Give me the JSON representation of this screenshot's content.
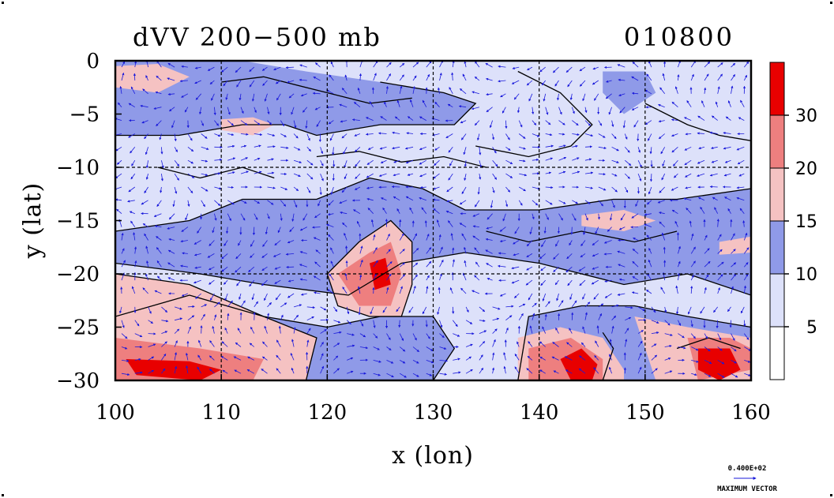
{
  "chart_data": {
    "type": "heatmap",
    "title": "dVV 200−500 mb",
    "date_label": "010800",
    "xlabel": "x (lon)",
    "ylabel": "y (lat)",
    "xlim": [
      100,
      160
    ],
    "ylim": [
      -30,
      0
    ],
    "x_ticks": [
      100,
      110,
      120,
      130,
      140,
      150,
      160
    ],
    "x_tick_labels": [
      "100",
      "110",
      "120",
      "130",
      "140",
      "150",
      "160"
    ],
    "y_ticks": [
      0,
      -5,
      -10,
      -15,
      -20,
      -25,
      -30
    ],
    "y_tick_labels": [
      "0",
      "−5",
      "−10",
      "−15",
      "−20",
      "−25",
      "−30"
    ],
    "grid_lines_x": [
      110,
      120,
      130,
      140,
      150
    ],
    "grid_lines_y": [
      -10,
      -20
    ],
    "colorbar": {
      "levels": [
        0,
        5,
        10,
        15,
        20,
        30,
        40
      ],
      "labels": [
        "5",
        "10",
        "15",
        "20",
        "30"
      ],
      "colors": [
        "#ffffff",
        "#dde1fa",
        "#8f9ae8",
        "#f5c2c2",
        "#ee7f7f",
        "#e80000"
      ]
    },
    "colors": {
      "blue_mid": "#8f9ae8",
      "blue_light": "#dde1fa",
      "pink": "#f5c2c2",
      "red_mid": "#ee7f7f",
      "red_dark": "#e80000",
      "vector": "#1a1adb"
    },
    "regions": [
      {
        "level": 10,
        "pts": [
          [
            100,
            0
          ],
          [
            112,
            0
          ],
          [
            118,
            -1
          ],
          [
            125,
            -2
          ],
          [
            131,
            -3
          ],
          [
            134,
            -4
          ],
          [
            132,
            -6
          ],
          [
            125,
            -6
          ],
          [
            119,
            -7
          ],
          [
            116,
            -6
          ],
          [
            112,
            -6
          ],
          [
            106,
            -7
          ],
          [
            100,
            -7
          ]
        ]
      },
      {
        "level": 10,
        "pts": [
          [
            100,
            -16
          ],
          [
            107,
            -15
          ],
          [
            112,
            -13
          ],
          [
            119,
            -13
          ],
          [
            124,
            -11
          ],
          [
            129,
            -12
          ],
          [
            133,
            -14
          ],
          [
            140,
            -14
          ],
          [
            147,
            -13
          ],
          [
            153,
            -13
          ],
          [
            160,
            -12
          ],
          [
            160,
            -22
          ],
          [
            154,
            -20
          ],
          [
            148,
            -21
          ],
          [
            140,
            -19
          ],
          [
            133,
            -18
          ],
          [
            127,
            -19
          ],
          [
            122,
            -22
          ],
          [
            114,
            -21
          ],
          [
            108,
            -20
          ],
          [
            100,
            -19
          ]
        ]
      },
      {
        "level": 10,
        "pts": [
          [
            100,
            -24
          ],
          [
            107,
            -22
          ],
          [
            114,
            -24
          ],
          [
            120,
            -25
          ],
          [
            125,
            -24
          ],
          [
            130,
            -24
          ],
          [
            132,
            -27
          ],
          [
            130,
            -30
          ],
          [
            100,
            -30
          ]
        ]
      },
      {
        "level": 10,
        "pts": [
          [
            139,
            -24
          ],
          [
            144,
            -23
          ],
          [
            149,
            -23
          ],
          [
            154,
            -24
          ],
          [
            160,
            -25
          ],
          [
            160,
            -30
          ],
          [
            138,
            -30
          ]
        ]
      },
      {
        "level": 10,
        "pts": [
          [
            146,
            -1
          ],
          [
            150,
            -1
          ],
          [
            151,
            -3
          ],
          [
            148,
            -5
          ],
          [
            146,
            -3
          ]
        ]
      },
      {
        "level": 15,
        "pts": [
          [
            100,
            -20
          ],
          [
            107,
            -21
          ],
          [
            114,
            -24
          ],
          [
            119,
            -26
          ],
          [
            118,
            -30
          ],
          [
            100,
            -30
          ]
        ]
      },
      {
        "level": 15,
        "pts": [
          [
            120,
            -20
          ],
          [
            123,
            -17
          ],
          [
            126,
            -15
          ],
          [
            128,
            -17
          ],
          [
            128,
            -21
          ],
          [
            127,
            -24
          ],
          [
            124,
            -24
          ],
          [
            121,
            -23
          ]
        ]
      },
      {
        "level": 15,
        "pts": [
          [
            138,
            -26
          ],
          [
            142,
            -25
          ],
          [
            146,
            -26
          ],
          [
            148,
            -29
          ],
          [
            148,
            -30
          ],
          [
            138,
            -30
          ]
        ]
      },
      {
        "level": 15,
        "pts": [
          [
            149,
            -24
          ],
          [
            154,
            -25
          ],
          [
            160,
            -26
          ],
          [
            160,
            -30
          ],
          [
            151,
            -30
          ]
        ]
      },
      {
        "level": 15,
        "pts": [
          [
            100,
            -0.5
          ],
          [
            104,
            -0.3
          ],
          [
            107,
            -1.5
          ],
          [
            104,
            -3
          ],
          [
            100,
            -2.5
          ]
        ]
      },
      {
        "level": 15,
        "pts": [
          [
            110,
            -5.5
          ],
          [
            113,
            -5.3
          ],
          [
            115,
            -6
          ],
          [
            113,
            -7
          ],
          [
            110,
            -6.5
          ]
        ]
      },
      {
        "level": 15,
        "pts": [
          [
            144,
            -14.5
          ],
          [
            148,
            -14
          ],
          [
            151,
            -15
          ],
          [
            148,
            -16
          ],
          [
            144,
            -15.5
          ]
        ]
      },
      {
        "level": 15,
        "pts": [
          [
            157,
            -17
          ],
          [
            160,
            -16.5
          ],
          [
            160,
            -18
          ],
          [
            157,
            -18.2
          ]
        ]
      },
      {
        "level": 20,
        "pts": [
          [
            121,
            -20
          ],
          [
            124,
            -18
          ],
          [
            126,
            -17
          ],
          [
            127,
            -20
          ],
          [
            126,
            -23
          ],
          [
            123,
            -23
          ]
        ]
      },
      {
        "level": 20,
        "pts": [
          [
            100,
            -26
          ],
          [
            108,
            -27
          ],
          [
            114,
            -28
          ],
          [
            113,
            -30
          ],
          [
            100,
            -30
          ]
        ]
      },
      {
        "level": 20,
        "pts": [
          [
            139,
            -27
          ],
          [
            143,
            -26
          ],
          [
            146,
            -28
          ],
          [
            146,
            -30
          ],
          [
            139,
            -30
          ]
        ]
      },
      {
        "level": 20,
        "pts": [
          [
            154,
            -26
          ],
          [
            158,
            -26
          ],
          [
            160,
            -27
          ],
          [
            160,
            -29
          ],
          [
            155,
            -30
          ]
        ]
      },
      {
        "level": 30,
        "pts": [
          [
            101,
            -28
          ],
          [
            107,
            -28.2
          ],
          [
            110,
            -29
          ],
          [
            108,
            -30
          ],
          [
            102,
            -29.5
          ]
        ]
      },
      {
        "level": 30,
        "pts": [
          [
            142,
            -28
          ],
          [
            144,
            -27
          ],
          [
            145.5,
            -28.5
          ],
          [
            145,
            -30
          ],
          [
            143,
            -30
          ]
        ]
      },
      {
        "level": 30,
        "pts": [
          [
            155,
            -27
          ],
          [
            158,
            -27
          ],
          [
            159,
            -29
          ],
          [
            157,
            -30
          ],
          [
            155,
            -29
          ]
        ]
      },
      {
        "level": 30,
        "pts": [
          [
            124,
            -19
          ],
          [
            125.5,
            -18.5
          ],
          [
            126,
            -21
          ],
          [
            124.5,
            -21.5
          ]
        ]
      }
    ],
    "contours": [
      {
        "pts": [
          [
            100,
            -7
          ],
          [
            106,
            -7
          ],
          [
            112,
            -6
          ],
          [
            116,
            -6
          ],
          [
            119,
            -7
          ],
          [
            125,
            -6
          ],
          [
            132,
            -6
          ],
          [
            134,
            -4
          ],
          [
            131,
            -3
          ],
          [
            125,
            -2
          ]
        ]
      },
      {
        "pts": [
          [
            100,
            -16
          ],
          [
            107,
            -15
          ],
          [
            112,
            -13
          ],
          [
            119,
            -13
          ],
          [
            124,
            -11
          ],
          [
            129,
            -12
          ],
          [
            133,
            -14
          ],
          [
            140,
            -14
          ],
          [
            147,
            -13
          ],
          [
            153,
            -13
          ],
          [
            160,
            -12
          ]
        ]
      },
      {
        "pts": [
          [
            100,
            -19
          ],
          [
            108,
            -20
          ],
          [
            114,
            -21
          ],
          [
            122,
            -22
          ],
          [
            127,
            -19
          ],
          [
            133,
            -18
          ],
          [
            140,
            -19
          ],
          [
            148,
            -21
          ],
          [
            154,
            -20
          ],
          [
            160,
            -22
          ]
        ]
      },
      {
        "pts": [
          [
            100,
            -24
          ],
          [
            107,
            -22
          ],
          [
            114,
            -24
          ],
          [
            120,
            -25
          ],
          [
            125,
            -24
          ],
          [
            130,
            -24
          ],
          [
            132,
            -27
          ],
          [
            130,
            -30
          ]
        ]
      },
      {
        "pts": [
          [
            138,
            -30
          ],
          [
            139,
            -24
          ],
          [
            144,
            -23
          ],
          [
            149,
            -23
          ],
          [
            154,
            -24
          ],
          [
            160,
            -25
          ]
        ]
      },
      {
        "pts": [
          [
            100,
            -20
          ],
          [
            107,
            -21
          ],
          [
            114,
            -24
          ],
          [
            119,
            -26
          ],
          [
            118,
            -30
          ]
        ]
      },
      {
        "pts": [
          [
            124,
            -24
          ],
          [
            121,
            -23
          ],
          [
            120,
            -20
          ],
          [
            123,
            -17
          ],
          [
            126,
            -15
          ],
          [
            128,
            -17
          ],
          [
            128,
            -21
          ],
          [
            127,
            -24
          ],
          [
            124,
            -24
          ]
        ]
      },
      {
        "pts": [
          [
            110,
            -2
          ],
          [
            114,
            -1.5
          ],
          [
            120,
            -3
          ],
          [
            124,
            -4
          ],
          [
            128,
            -3.5
          ]
        ]
      },
      {
        "pts": [
          [
            138,
            -1
          ],
          [
            142,
            -3
          ],
          [
            145,
            -6
          ],
          [
            143,
            -8
          ],
          [
            139,
            -9
          ],
          [
            134,
            -8
          ]
        ]
      },
      {
        "pts": [
          [
            119,
            -9
          ],
          [
            123,
            -8.5
          ],
          [
            127,
            -9.5
          ],
          [
            131,
            -9
          ],
          [
            135,
            -10
          ]
        ]
      },
      {
        "pts": [
          [
            135,
            -16
          ],
          [
            139,
            -17
          ],
          [
            144,
            -16
          ],
          [
            149,
            -17
          ],
          [
            153,
            -16
          ]
        ]
      },
      {
        "pts": [
          [
            150,
            -4
          ],
          [
            154,
            -6
          ],
          [
            157,
            -7
          ],
          [
            160,
            -7.5
          ]
        ]
      },
      {
        "pts": [
          [
            104,
            -10
          ],
          [
            108,
            -11
          ],
          [
            112,
            -10
          ],
          [
            115,
            -11
          ]
        ]
      },
      {
        "pts": [
          [
            146,
            -25.5
          ],
          [
            147,
            -27
          ],
          [
            146,
            -30
          ]
        ]
      },
      {
        "pts": [
          [
            153,
            -27
          ],
          [
            156,
            -26
          ],
          [
            159,
            -27
          ]
        ]
      }
    ],
    "vector_scale_label": "0.400E+02",
    "vector_caption": "MAXIMUM VECTOR"
  }
}
